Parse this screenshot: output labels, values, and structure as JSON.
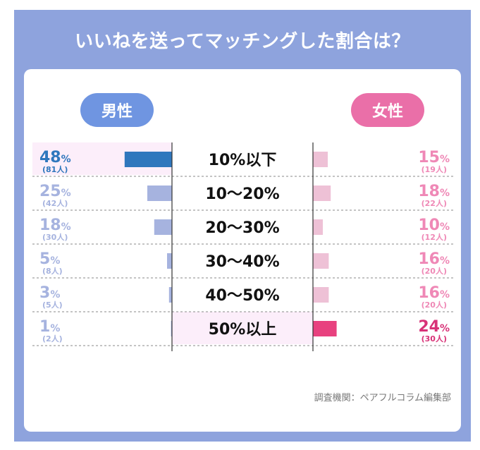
{
  "title": "いいねを送ってマッチングした割合は？",
  "labels": {
    "male": "男性",
    "female": "女性"
  },
  "source": "調査機関：ペアフルコラム編集部",
  "colors": {
    "frame": "#8ea3dd",
    "male_highlight_bar": "#2f77bd",
    "male_bar": "#a6b3df",
    "male_highlight_text": "#2f77bd",
    "male_text": "#a6b3df",
    "female_highlight_bar": "#e8417f",
    "female_bar": "#eec1d6",
    "female_highlight_text": "#d83277",
    "female_text": "#ef88b6",
    "row_highlight": "#fceefa"
  },
  "chart_data": {
    "type": "bar",
    "title": "いいねを送ってマッチングした割合は？",
    "categories": [
      "10%以下",
      "10〜20%",
      "20〜30%",
      "30〜40%",
      "40〜50%",
      "50%以上"
    ],
    "series": [
      {
        "name": "男性",
        "values": [
          48,
          25,
          18,
          5,
          3,
          1
        ],
        "counts": [
          81,
          42,
          30,
          8,
          5,
          2
        ],
        "count_unit": "人",
        "highlight_index": 0
      },
      {
        "name": "女性",
        "values": [
          15,
          18,
          10,
          16,
          16,
          24
        ],
        "counts": [
          19,
          22,
          12,
          20,
          20,
          30
        ],
        "count_unit": "人",
        "highlight_index": 5
      }
    ],
    "unit": "%"
  }
}
